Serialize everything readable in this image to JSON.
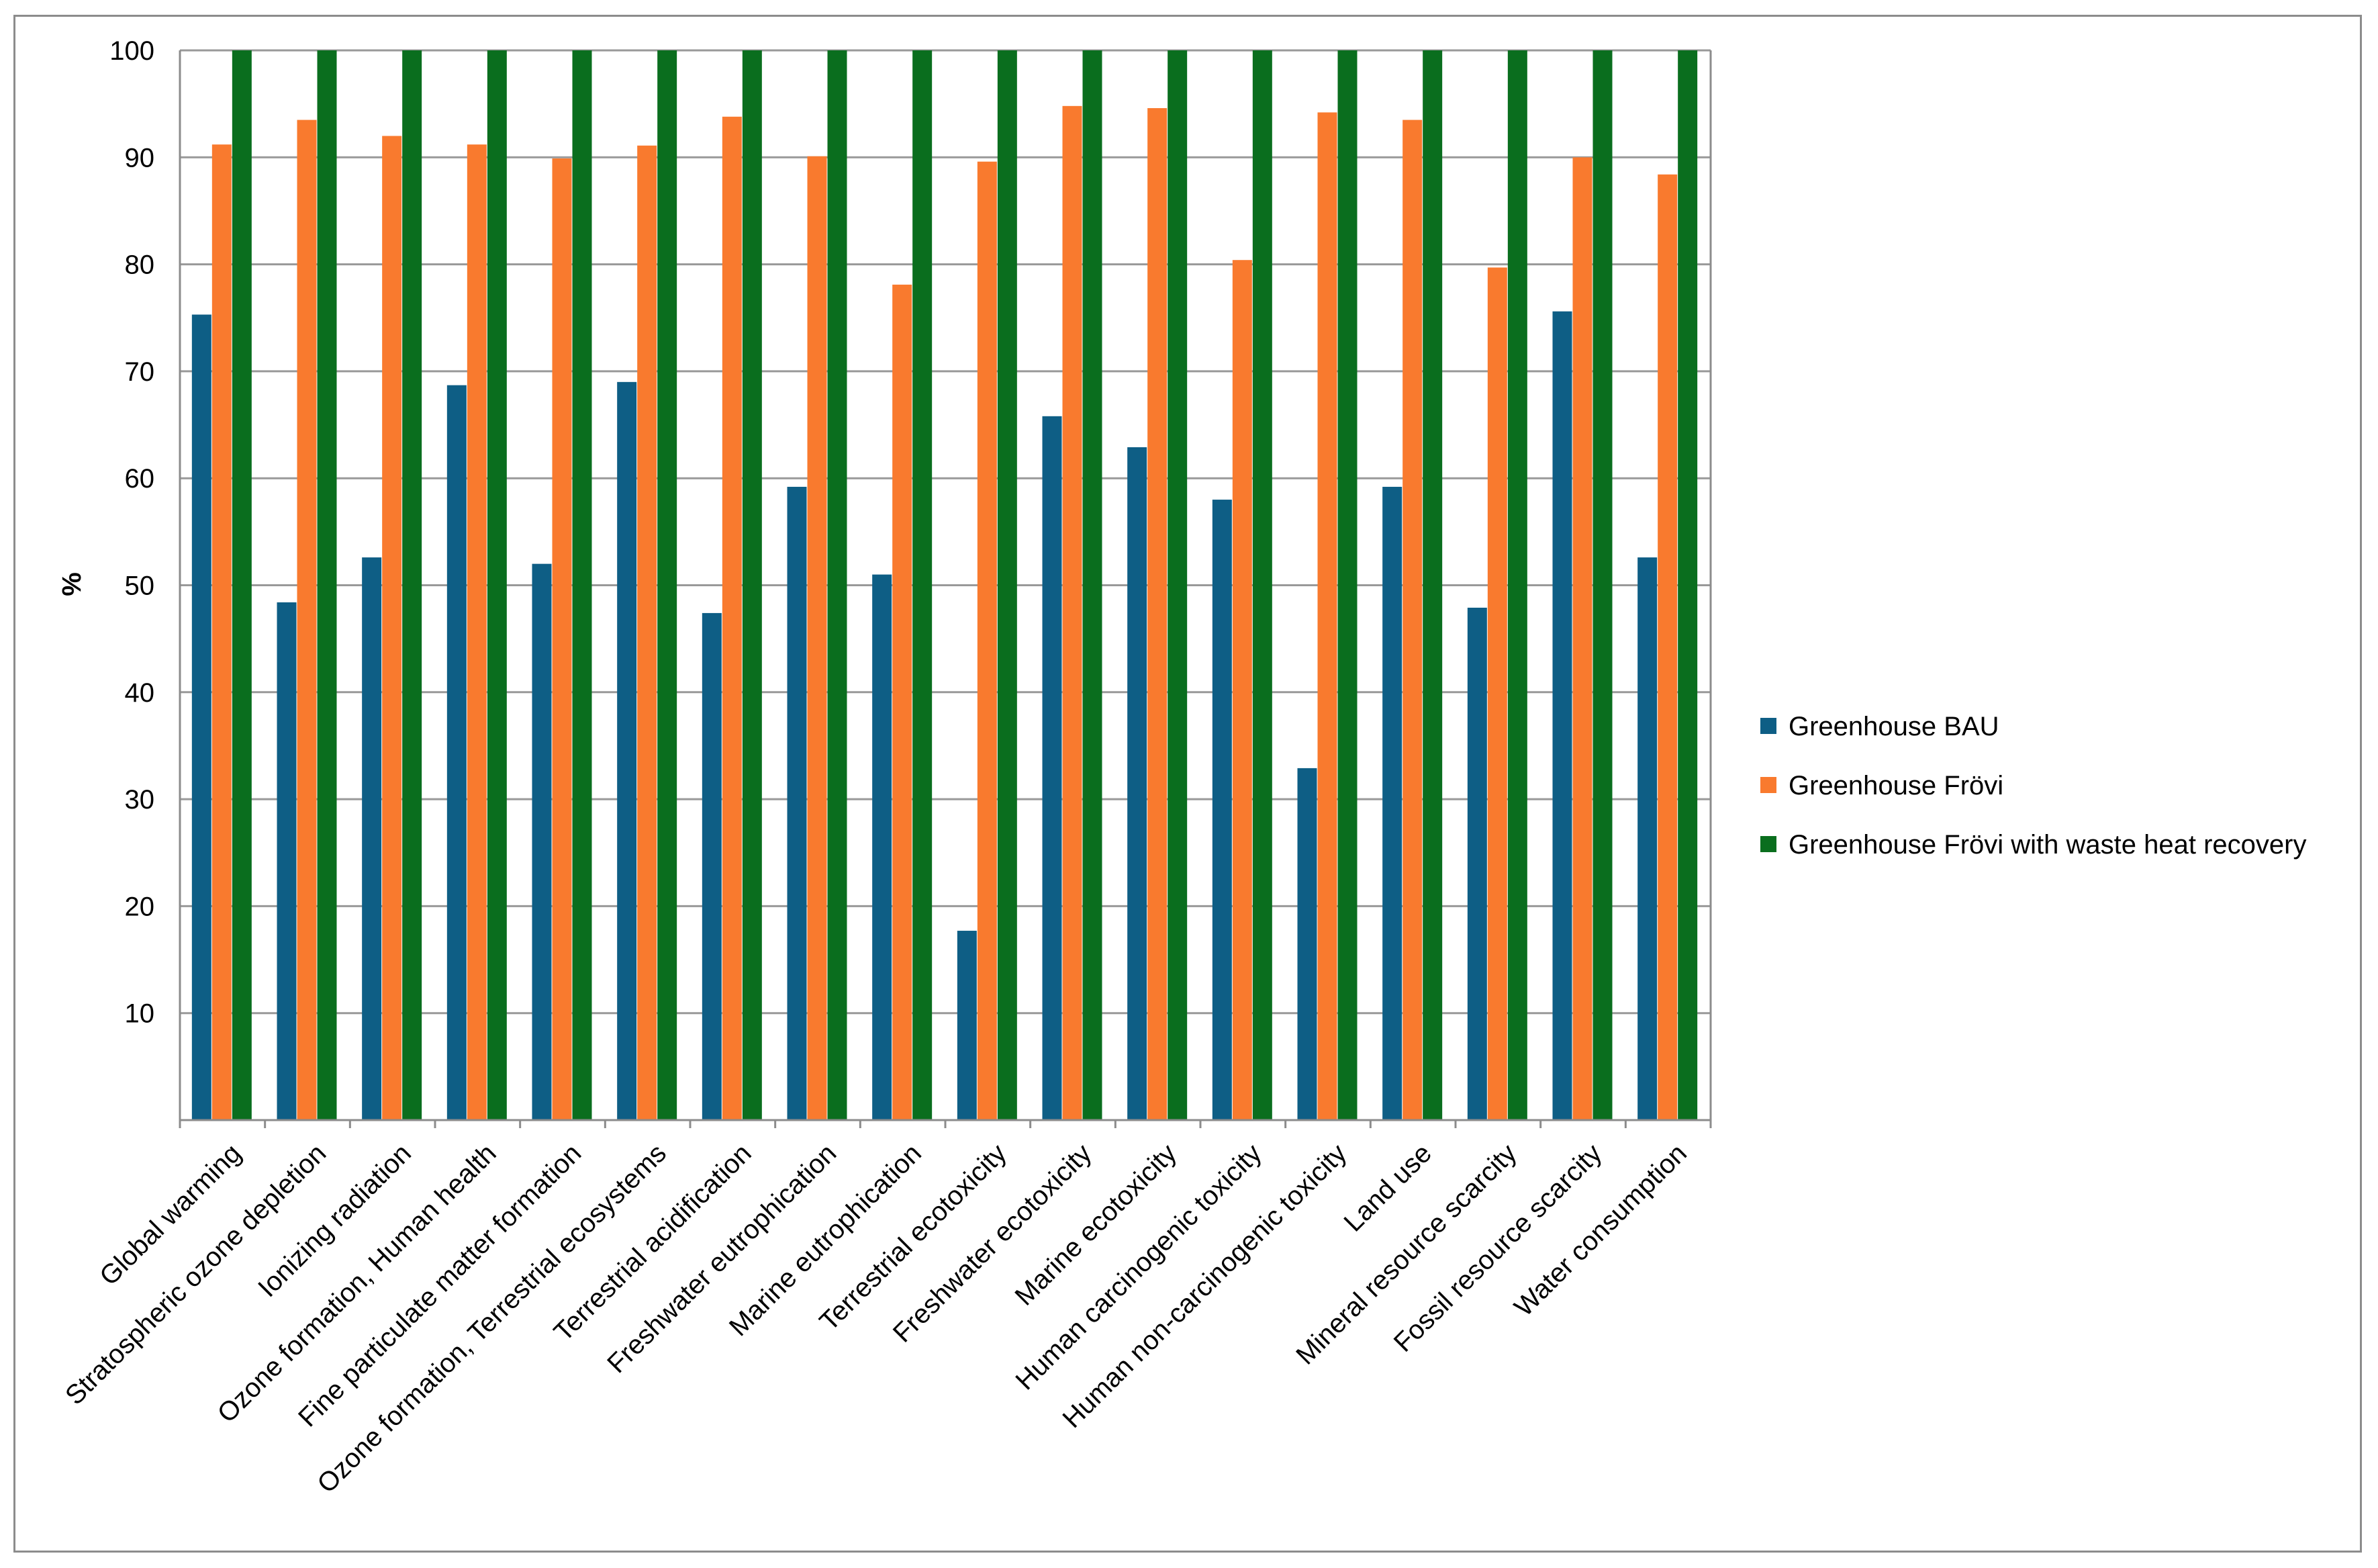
{
  "chart_data": {
    "type": "bar",
    "title": "",
    "xlabel": "",
    "ylabel": "%",
    "ylim": [
      0,
      100
    ],
    "yticks": [
      10,
      20,
      30,
      40,
      50,
      60,
      70,
      80,
      90,
      100
    ],
    "grid": true,
    "legend_position": "right",
    "categories": [
      "Global warming",
      "Stratospheric ozone depletion",
      "Ionizing radiation",
      "Ozone formation, Human health",
      "Fine particulate matter formation",
      "Ozone formation, Terrestrial ecosystems",
      "Terrestrial acidification",
      "Freshwater eutrophication",
      "Marine eutrophication",
      "Terrestrial ecotoxicity",
      "Freshwater ecotoxicity",
      "Marine ecotoxicity",
      "Human carcinogenic toxicity",
      "Human non-carcinogenic toxicity",
      "Land use",
      "Mineral resource scarcity",
      "Fossil resource scarcity",
      "Water consumption"
    ],
    "series": [
      {
        "name": "Greenhouse BAU",
        "color": "#0e5e85",
        "values": [
          75.3,
          48.4,
          52.6,
          68.7,
          52.0,
          69.0,
          47.4,
          59.2,
          51.0,
          17.7,
          65.8,
          62.9,
          58.0,
          32.9,
          59.2,
          47.9,
          75.6,
          52.6
        ]
      },
      {
        "name": "Greenhouse Frövi",
        "color": "#f97a2e",
        "values": [
          91.2,
          93.5,
          92.0,
          91.2,
          89.9,
          91.1,
          93.8,
          90.1,
          78.1,
          89.6,
          94.8,
          94.6,
          80.4,
          94.2,
          93.5,
          79.7,
          90.0,
          88.4
        ]
      },
      {
        "name": "Greenhouse Frövi with waste heat recovery",
        "color": "#0a6e1e",
        "values": [
          100,
          100,
          100,
          100,
          100,
          100,
          100,
          100,
          100,
          100,
          100,
          100,
          100,
          100,
          100,
          100,
          100,
          100
        ]
      }
    ],
    "colors": {
      "grid": "#999999",
      "axis": "#8c8c8c",
      "plot_border": "#8c8c8c"
    }
  }
}
